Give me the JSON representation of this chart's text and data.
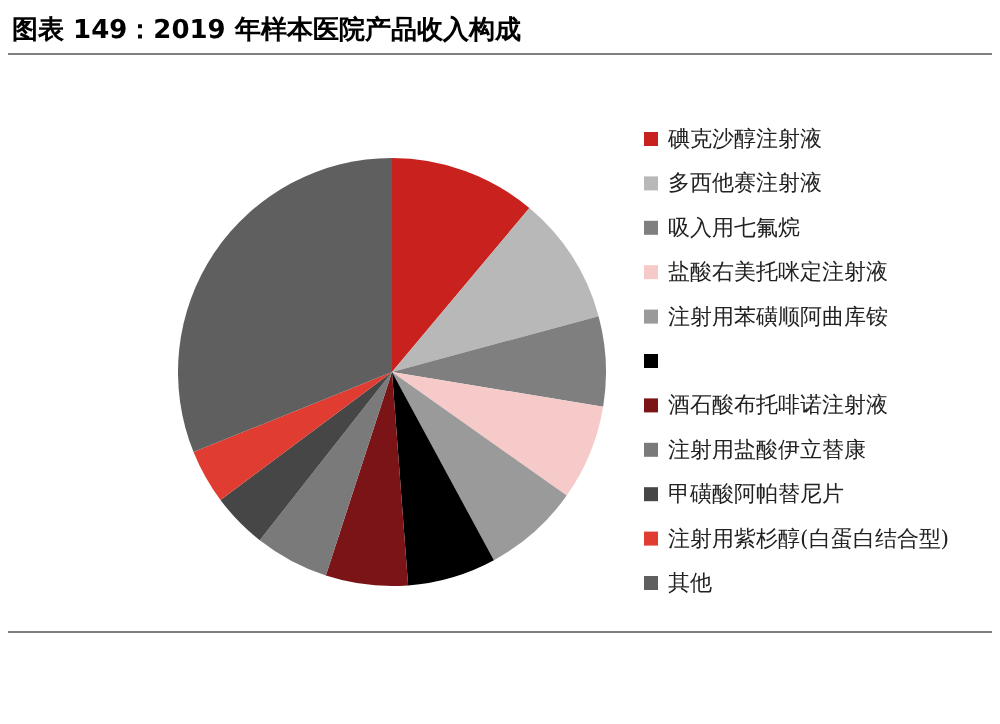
{
  "chart_data": {
    "type": "pie",
    "title": "图表 149：2019 年样本医院产品收入构成",
    "categories": [
      "碘克沙醇注射液",
      "多西他赛注射液",
      "吸入用七氟烷",
      "盐酸右美托咪定注射液",
      "注射用苯磺顺阿曲库铵",
      null,
      "酒石酸布托啡诺注射液",
      "注射用盐酸伊立替康",
      "甲磺酸阿帕替尼片",
      "注射用紫杉醇(白蛋白结合型)",
      "其他"
    ],
    "values": [
      11.1,
      9.7,
      6.8,
      7.2,
      7.3,
      6.7,
      6.2,
      5.6,
      4.2,
      4.1,
      31.1
    ],
    "colors": [
      "#c9211e",
      "#b8b8b8",
      "#7f7f7f",
      "#f7caca",
      "#9a9a9a",
      "#000000",
      "#7b1416",
      "#7a7a7a",
      "#464646",
      "#e03c31",
      "#5f5f5f"
    ],
    "legend": "right"
  }
}
